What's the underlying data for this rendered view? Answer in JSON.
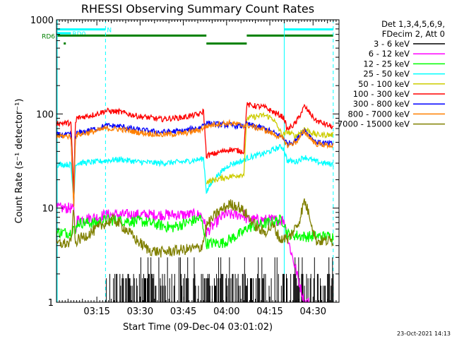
{
  "chart_data": {
    "type": "line",
    "title": "RHESSI Observing Summary Count Rates",
    "xlabel": "Start Time (09-Dec-04 03:01:02)",
    "ylabel": "Count Rate (s⁻¹ detector⁻¹)",
    "xlim": [
      0,
      98
    ],
    "ylim": [
      1,
      1000
    ],
    "yscale": "log",
    "grid": false,
    "legend_position": "top-right",
    "x_units": "minutes after 03:01:02",
    "x_ticks": [
      {
        "x": 14,
        "label": "03:15"
      },
      {
        "x": 29,
        "label": "03:30"
      },
      {
        "x": 44,
        "label": "03:45"
      },
      {
        "x": 59,
        "label": "04:00"
      },
      {
        "x": 74,
        "label": "04:15"
      },
      {
        "x": 89,
        "label": "04:30"
      }
    ],
    "y_ticks": [
      {
        "y": 1,
        "label": "1"
      },
      {
        "y": 10,
        "label": "10"
      },
      {
        "y": 100,
        "label": "100"
      },
      {
        "y": 1000,
        "label": "1000"
      }
    ],
    "legend_header": [
      "Det 1,3,4,5,6,9,",
      "FDecim 2, Att 0"
    ],
    "timestamp": "23-Oct-2021 14:13",
    "flags": [
      {
        "label": "N",
        "color": "#00ffff",
        "start": 0,
        "end": 17,
        "level": 790,
        "style": "solid"
      },
      {
        "label": "N",
        "color": "#00ffff",
        "start": 79,
        "end": 96,
        "level": 790,
        "style": "solid"
      },
      {
        "label": "RD0",
        "color": "#00ffff",
        "start": 0,
        "end": 5,
        "level": 720,
        "style": "solid"
      },
      {
        "label": "RD6",
        "color": "#008000",
        "start": 0,
        "end": 52,
        "level": 680,
        "style": "solid"
      },
      {
        "label": "",
        "color": "#008000",
        "start": 52,
        "end": 66,
        "level": 560,
        "style": "solid"
      },
      {
        "label": "",
        "color": "#008000",
        "start": 66,
        "end": 96,
        "level": 680,
        "style": "solid"
      }
    ],
    "vertical_markers": [
      {
        "x": 0,
        "color": "#00ffff",
        "style": "solid"
      },
      {
        "x": 17,
        "color": "#00ffff",
        "style": "dashed"
      },
      {
        "x": 79,
        "color": "#00ffff",
        "style": "solid"
      },
      {
        "x": 96,
        "color": "#00ffff",
        "style": "dashed"
      }
    ],
    "series": [
      {
        "name": "3 - 6 keV",
        "color": "#000000",
        "x": [
          17,
          96
        ],
        "y": [
          1,
          1
        ],
        "bursty": true
      },
      {
        "name": "6 - 12 keV",
        "color": "#ff00ff",
        "x": [
          0,
          5,
          6,
          6.5,
          7,
          14,
          17,
          30,
          40,
          50,
          51,
          52,
          58,
          65,
          66,
          72,
          78,
          79,
          80,
          86,
          88
        ],
        "y": [
          10,
          10,
          9.5,
          5,
          7.5,
          8,
          8.5,
          8.5,
          8.5,
          8.5,
          7.8,
          5.5,
          8.5,
          8.5,
          7.5,
          7.5,
          7.5,
          7.5,
          5,
          1,
          1
        ]
      },
      {
        "name": "12 - 25 keV",
        "color": "#00ff00",
        "x": [
          0,
          5,
          6,
          6.5,
          7,
          14,
          17,
          30,
          40,
          50,
          51,
          52,
          58,
          65,
          66,
          72,
          78,
          79,
          80,
          86,
          90,
          96
        ],
        "y": [
          5.5,
          5.5,
          6.5,
          5,
          7,
          7,
          7.5,
          7.2,
          6.2,
          7.8,
          6.2,
          4.2,
          4.3,
          5.6,
          6.2,
          6.8,
          7.5,
          7,
          5.3,
          5.0,
          5.0,
          5.0
        ]
      },
      {
        "name": "25 - 50 keV",
        "color": "#00ffff",
        "x": [
          0,
          5,
          6,
          6.5,
          7,
          14,
          17,
          22,
          28,
          36,
          44,
          50,
          51,
          52,
          55,
          60,
          65,
          66,
          72,
          78,
          79,
          80,
          83,
          86,
          90,
          96
        ],
        "y": [
          29,
          29,
          12,
          28,
          30,
          31,
          32,
          33,
          31,
          30,
          31,
          33,
          34,
          15,
          21,
          29,
          32,
          34,
          38,
          45,
          42,
          32,
          31,
          35,
          31,
          29
        ]
      },
      {
        "name": "50 - 100 keV",
        "color": "#cccc00",
        "x": [
          52,
          58,
          65,
          66,
          72,
          75,
          78,
          79,
          80,
          83,
          86,
          90,
          96
        ],
        "y": [
          19,
          21,
          23,
          90,
          97,
          90,
          62,
          60,
          65,
          58,
          70,
          60,
          60
        ]
      },
      {
        "name": "100 - 300 keV",
        "color": "#ff0000",
        "x": [
          0,
          5,
          6,
          6.5,
          7,
          14,
          17,
          22,
          28,
          36,
          44,
          50,
          51,
          52,
          55,
          60,
          65,
          66,
          72,
          78,
          79,
          80,
          83,
          86,
          90,
          96
        ],
        "y": [
          80,
          80,
          15,
          75,
          90,
          100,
          108,
          105,
          95,
          88,
          92,
          100,
          108,
          36,
          38,
          42,
          40,
          125,
          118,
          95,
          90,
          68,
          80,
          120,
          85,
          72
        ]
      },
      {
        "name": "300 - 800 keV",
        "color": "#0000ff",
        "x": [
          0,
          5,
          6,
          6.5,
          7,
          14,
          17,
          22,
          28,
          36,
          44,
          50,
          51,
          52,
          55,
          60,
          65,
          66,
          72,
          78,
          79,
          80,
          83,
          86,
          90,
          96
        ],
        "y": [
          60,
          60,
          10,
          56,
          62,
          70,
          75,
          74,
          68,
          64,
          66,
          72,
          78,
          80,
          78,
          76,
          74,
          78,
          70,
          58,
          55,
          48,
          52,
          68,
          50,
          48
        ]
      },
      {
        "name": "800 - 7000 keV",
        "color": "#ff8000",
        "x": [
          0,
          5,
          6,
          6.5,
          7,
          14,
          17,
          22,
          28,
          36,
          44,
          50,
          51,
          52,
          55,
          60,
          65,
          66,
          72,
          78,
          79,
          80,
          83,
          86,
          90,
          96
        ],
        "y": [
          58,
          58,
          10,
          55,
          60,
          66,
          70,
          69,
          64,
          60,
          62,
          68,
          72,
          74,
          78,
          80,
          75,
          76,
          68,
          56,
          53,
          46,
          50,
          65,
          48,
          46
        ]
      },
      {
        "name": "7000 - 15000 keV",
        "color": "#808000",
        "x": [
          0,
          5,
          6,
          6.5,
          7,
          14,
          17,
          20,
          24,
          28,
          32,
          36,
          44,
          50,
          51,
          52,
          56,
          60,
          63,
          66,
          70,
          72,
          75,
          78,
          79,
          80,
          84,
          86,
          88,
          90,
          96
        ],
        "y": [
          4.2,
          4.2,
          10,
          4,
          4.5,
          6,
          7,
          7.5,
          6,
          4.5,
          3.6,
          3.4,
          3.6,
          3.8,
          4.5,
          6.5,
          9,
          11,
          10.5,
          8.5,
          6,
          5.5,
          6.5,
          4.5,
          5,
          4.5,
          7,
          12,
          8,
          4.5,
          4.5
        ]
      }
    ]
  }
}
